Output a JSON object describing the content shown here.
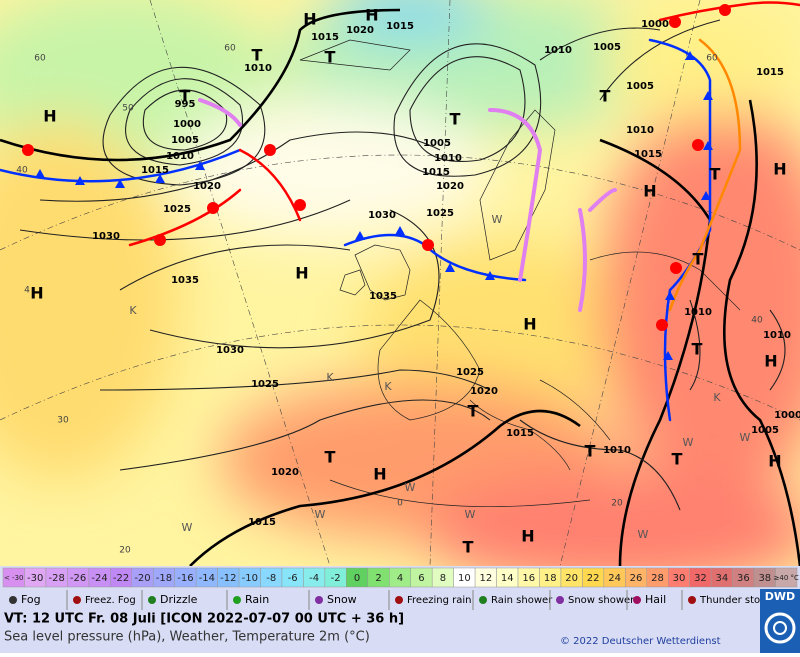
{
  "map": {
    "pressure_labels": [
      "1015",
      "1020",
      "1015",
      "1010",
      "995",
      "1000",
      "1005",
      "1010",
      "1015",
      "1020",
      "1025",
      "1030",
      "1035",
      "1030",
      "1025",
      "1020",
      "1015",
      "1030",
      "1035",
      "1025",
      "1020",
      "1015",
      "1010",
      "1005",
      "1010",
      "1005",
      "1005",
      "1010",
      "1015",
      "1000",
      "1015",
      "1010",
      "1010",
      "1005",
      "1000",
      "1025",
      "1020",
      "1015",
      "1010"
    ],
    "centers": [
      "H",
      "H",
      "H",
      "H",
      "H",
      "H",
      "H",
      "H",
      "H",
      "H",
      "H",
      "H",
      "T",
      "T",
      "T",
      "T",
      "T",
      "T",
      "T",
      "T",
      "T",
      "T",
      "T",
      "T",
      "T"
    ],
    "temperature_labels": [
      "60",
      "60",
      "50",
      "40",
      "4",
      "40",
      "60",
      "30",
      "20",
      "20",
      "0"
    ],
    "airmass_labels": [
      "K",
      "K",
      "K",
      "W",
      "W",
      "W",
      "W",
      "W",
      "W",
      "W",
      "W",
      "K"
    ]
  },
  "color_scale": {
    "labels": [
      "< -30",
      "-30",
      "-28",
      "-26",
      "-24",
      "-22",
      "-20",
      "-18",
      "-16",
      "-14",
      "-12",
      "-10",
      "-8",
      "-6",
      "-4",
      "-2",
      "0",
      "2",
      "4",
      "6",
      "8",
      "10",
      "12",
      "14",
      "16",
      "18",
      "20",
      "22",
      "24",
      "26",
      "28",
      "30",
      "32",
      "34",
      "36",
      "38",
      "≥40 °C"
    ],
    "colors": [
      "#d890f0",
      "#e0a8f4",
      "#d8a0f4",
      "#d098f4",
      "#c890f4",
      "#c088f4",
      "#a8a0f8",
      "#a0a8fc",
      "#98b0ff",
      "#90b8ff",
      "#88c0ff",
      "#88ccff",
      "#88d8ff",
      "#88e4f8",
      "#88ecec",
      "#80eed8",
      "#60d060",
      "#80e070",
      "#a0ec88",
      "#c0f4a0",
      "#e0fcc0",
      "#ffffff",
      "#ffffe0",
      "#ffffc8",
      "#fff8a8",
      "#fff088",
      "#ffe468",
      "#ffd850",
      "#ffc858",
      "#ffb468",
      "#ff9c6c",
      "#ff7c70",
      "#f06868",
      "#e07070",
      "#d08080",
      "#c09090",
      "#c8a8a8"
    ]
  },
  "weather_legend": [
    "Fog",
    "Freez. Fog",
    "Drizzle",
    "Rain",
    "Snow",
    "Freezing rain",
    "Rain shower",
    "Snow shower",
    "Hail",
    "Thunder storm"
  ],
  "footer": {
    "valid_time": "VT: 12 UTC Fr.  08 Juli [ICON 2022-07-07  00 UTC + 36 h]",
    "description": "Sea level pressure (hPa), Weather, Temperature 2m (°C)",
    "copyright": "© 2022 Deutscher Wetterdienst",
    "logo": "DWD"
  }
}
